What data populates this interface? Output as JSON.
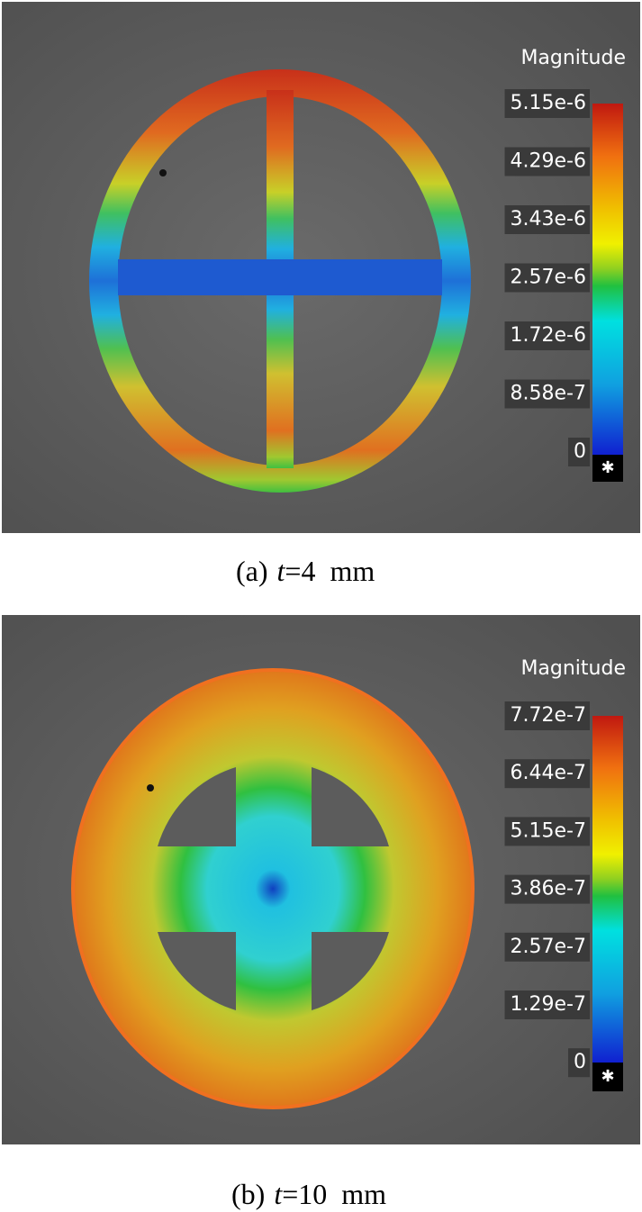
{
  "panels": [
    {
      "legend": {
        "title": "Magnitude",
        "labels": [
          "5.15e-6",
          "4.29e-6",
          "3.43e-6",
          "2.57e-6",
          "1.72e-6",
          "8.58e-7",
          "0"
        ]
      },
      "caption": {
        "label": "(a)",
        "variable": "t",
        "rest": "=4  mm"
      }
    },
    {
      "legend": {
        "title": "Magnitude",
        "labels": [
          "7.72e-7",
          "6.44e-7",
          "5.15e-7",
          "3.86e-7",
          "2.57e-7",
          "1.29e-7",
          "0"
        ]
      },
      "caption": {
        "label": "(b)",
        "variable": "t",
        "rest": "=10  mm"
      }
    }
  ]
}
